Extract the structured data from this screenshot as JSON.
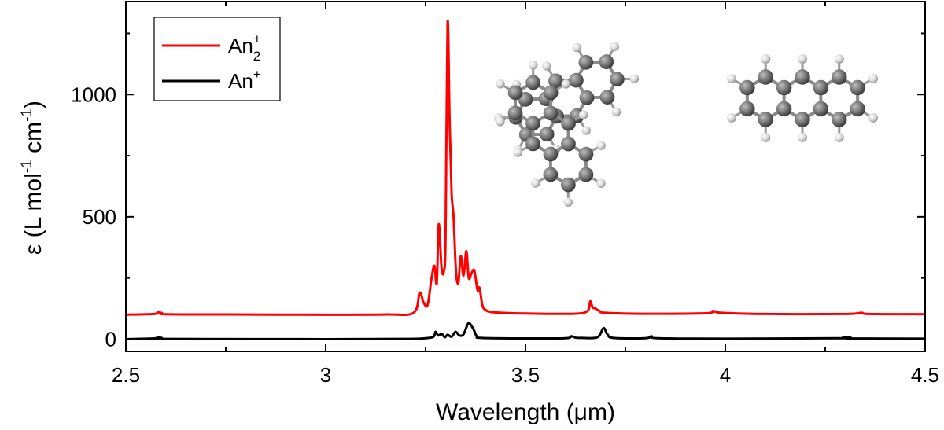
{
  "chart_data": {
    "type": "line",
    "title": "",
    "xlabel": "Wavelength (μm)",
    "ylabel_parts": [
      "ε (L mol",
      "-1",
      " cm",
      "-1",
      ")"
    ],
    "xlim": [
      2.5,
      4.5
    ],
    "ylim": [
      -50,
      1380
    ],
    "x_ticks": [
      2.5,
      3,
      3.5,
      4,
      4.5
    ],
    "x_tick_labels": [
      "2.5",
      "3",
      "3.5",
      "4",
      "4.5"
    ],
    "y_ticks": [
      0,
      500,
      1000
    ],
    "y_tick_labels": [
      "0",
      "500",
      "1000"
    ],
    "grid": false,
    "legend_placement": "top-left",
    "legend": [
      {
        "base": "An",
        "sub": "2",
        "sup": "+",
        "color": "#ff0000"
      },
      {
        "base": "An",
        "sub": "",
        "sup": "+",
        "color": "#000000"
      }
    ],
    "series": [
      {
        "color": "#ff0000",
        "points": [
          [
            2.5,
            100
          ],
          [
            2.57,
            103
          ],
          [
            2.58,
            110
          ],
          [
            2.59,
            107
          ],
          [
            2.6,
            102
          ],
          [
            2.75,
            101
          ],
          [
            3.0,
            100
          ],
          [
            3.15,
            101
          ],
          [
            3.22,
            108
          ],
          [
            3.235,
            190
          ],
          [
            3.245,
            150
          ],
          [
            3.255,
            140
          ],
          [
            3.265,
            250
          ],
          [
            3.272,
            300
          ],
          [
            3.278,
            230
          ],
          [
            3.283,
            470
          ],
          [
            3.29,
            290
          ],
          [
            3.296,
            280
          ],
          [
            3.3,
            420
          ],
          [
            3.305,
            1290
          ],
          [
            3.31,
            900
          ],
          [
            3.315,
            600
          ],
          [
            3.32,
            500
          ],
          [
            3.326,
            280
          ],
          [
            3.332,
            230
          ],
          [
            3.338,
            340
          ],
          [
            3.345,
            260
          ],
          [
            3.352,
            360
          ],
          [
            3.358,
            250
          ],
          [
            3.365,
            270
          ],
          [
            3.372,
            280
          ],
          [
            3.38,
            200
          ],
          [
            3.385,
            210
          ],
          [
            3.392,
            140
          ],
          [
            3.4,
            120
          ],
          [
            3.42,
            110
          ],
          [
            3.5,
            105
          ],
          [
            3.62,
            104
          ],
          [
            3.655,
            115
          ],
          [
            3.662,
            155
          ],
          [
            3.668,
            130
          ],
          [
            3.675,
            125
          ],
          [
            3.685,
            115
          ],
          [
            3.7,
            108
          ],
          [
            3.8,
            104
          ],
          [
            3.95,
            106
          ],
          [
            3.97,
            115
          ],
          [
            3.99,
            108
          ],
          [
            4.1,
            103
          ],
          [
            4.3,
            103
          ],
          [
            4.34,
            108
          ],
          [
            4.36,
            103
          ],
          [
            4.5,
            102
          ]
        ]
      },
      {
        "color": "#000000",
        "points": [
          [
            2.5,
            0
          ],
          [
            2.57,
            3
          ],
          [
            2.58,
            8
          ],
          [
            2.59,
            5
          ],
          [
            2.6,
            1
          ],
          [
            3.0,
            0
          ],
          [
            3.2,
            1
          ],
          [
            3.25,
            4
          ],
          [
            3.27,
            10
          ],
          [
            3.275,
            30
          ],
          [
            3.282,
            15
          ],
          [
            3.29,
            22
          ],
          [
            3.298,
            8
          ],
          [
            3.305,
            18
          ],
          [
            3.315,
            10
          ],
          [
            3.325,
            30
          ],
          [
            3.335,
            15
          ],
          [
            3.345,
            20
          ],
          [
            3.355,
            60
          ],
          [
            3.36,
            65
          ],
          [
            3.37,
            40
          ],
          [
            3.378,
            12
          ],
          [
            3.39,
            5
          ],
          [
            3.5,
            3
          ],
          [
            3.6,
            4
          ],
          [
            3.615,
            12
          ],
          [
            3.625,
            6
          ],
          [
            3.64,
            5
          ],
          [
            3.68,
            8
          ],
          [
            3.695,
            45
          ],
          [
            3.705,
            20
          ],
          [
            3.72,
            5
          ],
          [
            3.8,
            4
          ],
          [
            3.815,
            12
          ],
          [
            3.83,
            4
          ],
          [
            4.0,
            2
          ],
          [
            4.29,
            4
          ],
          [
            4.3,
            8
          ],
          [
            4.31,
            3
          ],
          [
            4.5,
            2
          ]
        ]
      }
    ]
  }
}
